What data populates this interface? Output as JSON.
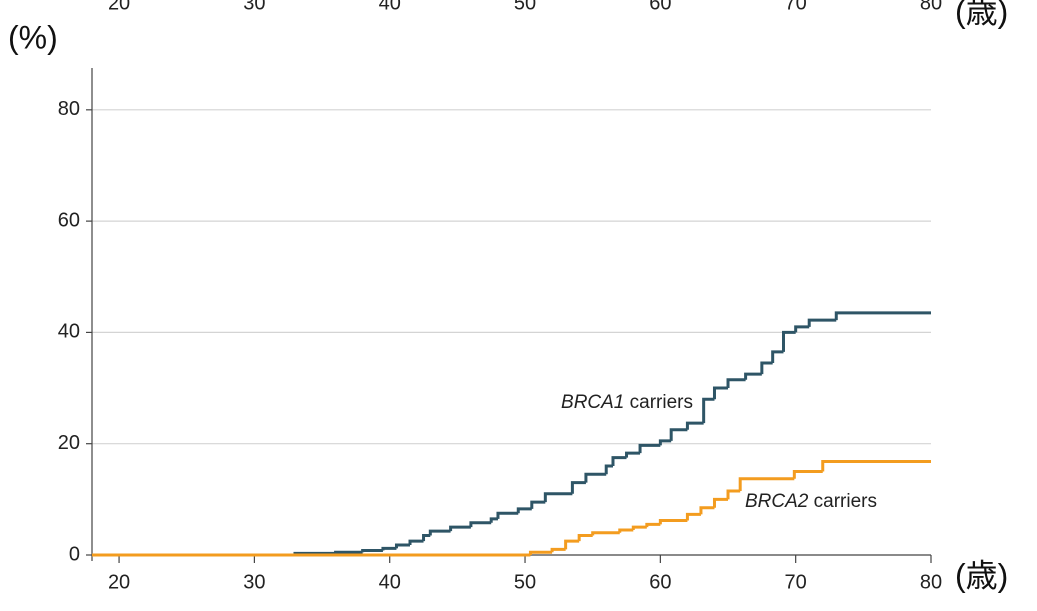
{
  "chart_data": {
    "type": "step",
    "y_unit_label": "(%)",
    "x_unit_label": "(歳)",
    "xlim": [
      18,
      80
    ],
    "xticks": [
      20,
      30,
      40,
      50,
      60,
      70,
      80
    ],
    "ylim": [
      0,
      85
    ],
    "yticks": [
      0,
      20,
      40,
      60,
      80
    ],
    "grid": true,
    "series": [
      {
        "name": "BRCA1 carriers",
        "color": "#2e5566",
        "x": [
          18,
          33,
          36,
          38,
          39.5,
          40.5,
          41.5,
          42.5,
          43,
          44.5,
          46,
          47.5,
          48,
          49.5,
          50.5,
          51.5,
          53.5,
          54.5,
          56,
          56.5,
          57.5,
          58.5,
          60,
          60.8,
          62,
          63.2,
          64,
          65,
          66.3,
          67.5,
          68.3,
          69.1,
          70,
          71,
          73,
          80
        ],
        "values": [
          0,
          0.3,
          0.5,
          0.8,
          1.2,
          1.8,
          2.5,
          3.5,
          4.3,
          5,
          5.8,
          6.5,
          7.5,
          8.3,
          9.5,
          11,
          13,
          14.5,
          16,
          17.5,
          18.3,
          19.7,
          20.5,
          22.5,
          23.7,
          28,
          30,
          31.5,
          32.5,
          34.5,
          36.5,
          40,
          41,
          42.2,
          43.5,
          43.5
        ]
      },
      {
        "name": "BRCA2 carriers",
        "color": "#f39c1f",
        "x": [
          18,
          50.4,
          52,
          53,
          54,
          55,
          57,
          58,
          59,
          60,
          62,
          63,
          64,
          65,
          65.9,
          69.9,
          72,
          80
        ],
        "values": [
          0,
          0.5,
          1,
          2.5,
          3.5,
          4,
          4.5,
          5,
          5.5,
          6.2,
          7.3,
          8.5,
          10,
          11.5,
          13.7,
          15,
          16.8,
          16.8
        ]
      }
    ]
  }
}
